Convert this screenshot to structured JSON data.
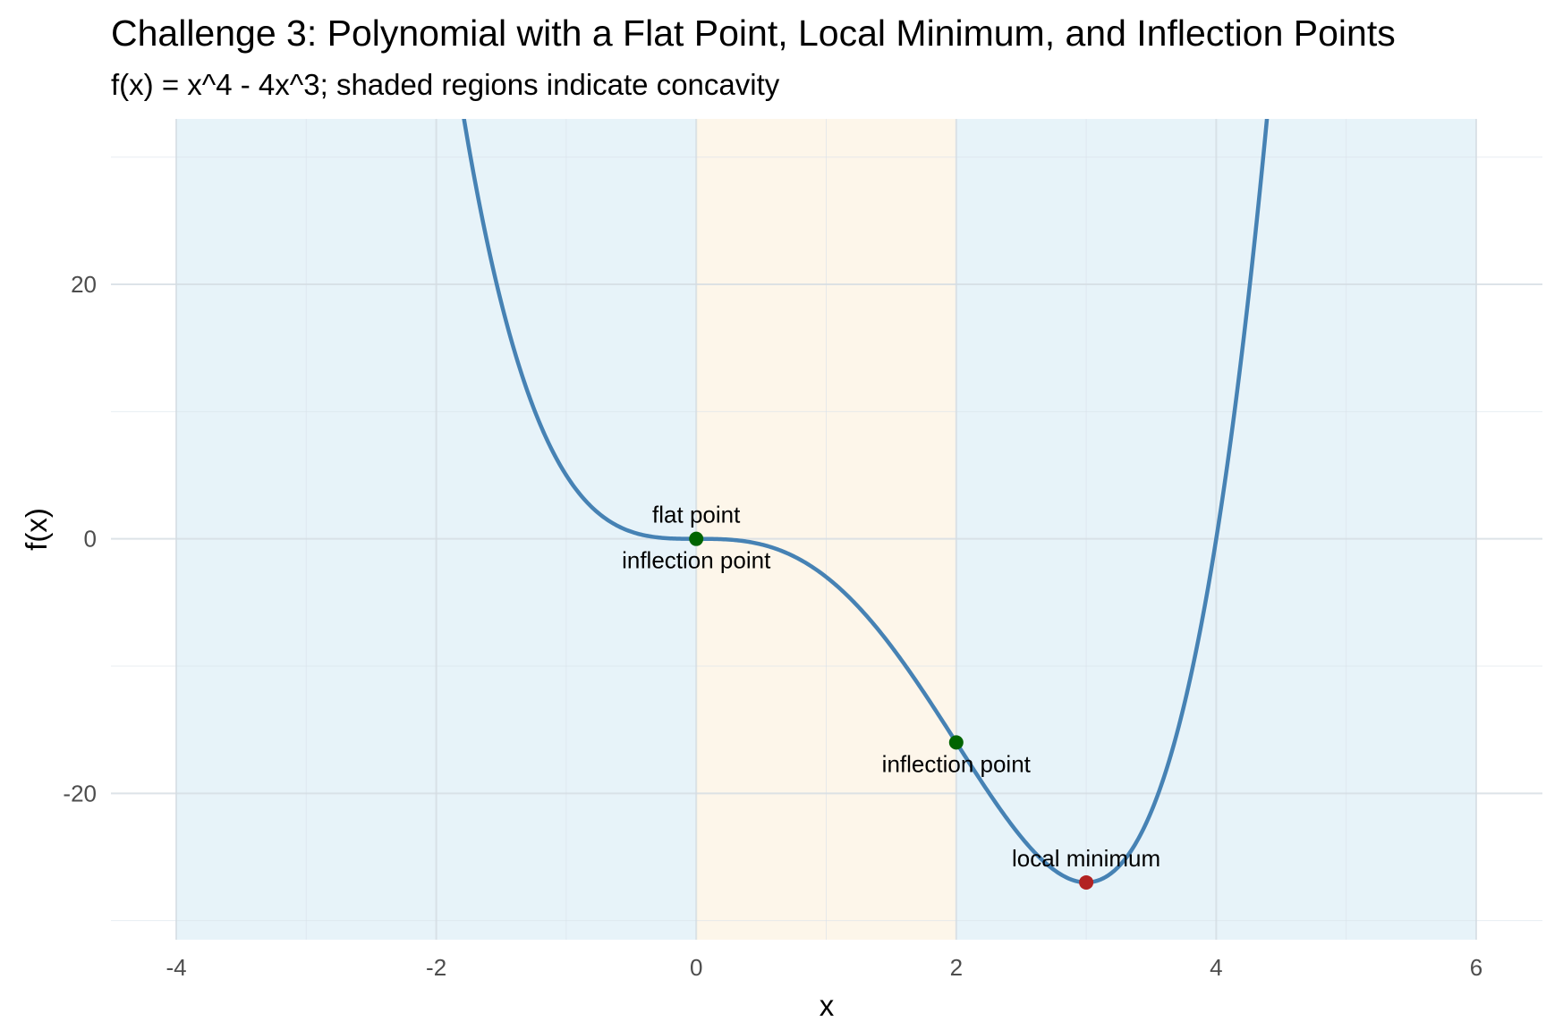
{
  "chart_data": {
    "type": "line",
    "title": "Challenge 3: Polynomial with a Flat Point, Local Minimum, and Inflection Points",
    "subtitle": "f(x) = x^4 - 4x^3; shaded regions indicate concavity",
    "xlabel": "x",
    "ylabel": "f(x)",
    "xlim": [
      -4,
      6
    ],
    "ylim": [
      -31.5,
      33
    ],
    "x_ticks": [
      -4,
      -2,
      0,
      2,
      4,
      6
    ],
    "x_tick_labels": [
      "-4",
      "-2",
      "0",
      "2",
      "4",
      "6"
    ],
    "y_ticks": [
      -20,
      0,
      20
    ],
    "y_tick_labels": [
      "-20",
      "0",
      "20"
    ],
    "grid": true,
    "polynomial_coefficients": {
      "x4": 1,
      "x3": -4,
      "x2": 0,
      "x1": 0,
      "x0": 0
    },
    "curve": {
      "x_from": -4,
      "x_to": 6,
      "samples": 800,
      "color": "#4682b4"
    },
    "regions": [
      {
        "x0": -4,
        "x1": 0,
        "fill": "#e7f3f9",
        "concavity": "concave up"
      },
      {
        "x0": 0,
        "x1": 2,
        "fill": "#fdf6ea",
        "concavity": "concave down"
      },
      {
        "x0": 2,
        "x1": 6,
        "fill": "#e7f3f9",
        "concavity": "concave up"
      }
    ],
    "points": [
      {
        "x": 0,
        "y": 0,
        "color": "#006400",
        "labels": [
          {
            "text": "flat point",
            "position": "above"
          },
          {
            "text": "inflection point",
            "position": "below"
          }
        ]
      },
      {
        "x": 2,
        "y": -16,
        "color": "#006400",
        "labels": [
          {
            "text": "inflection point",
            "position": "below"
          }
        ]
      },
      {
        "x": 3,
        "y": -27,
        "color": "#b22222",
        "labels": [
          {
            "text": "local minimum",
            "position": "above"
          }
        ]
      }
    ]
  }
}
